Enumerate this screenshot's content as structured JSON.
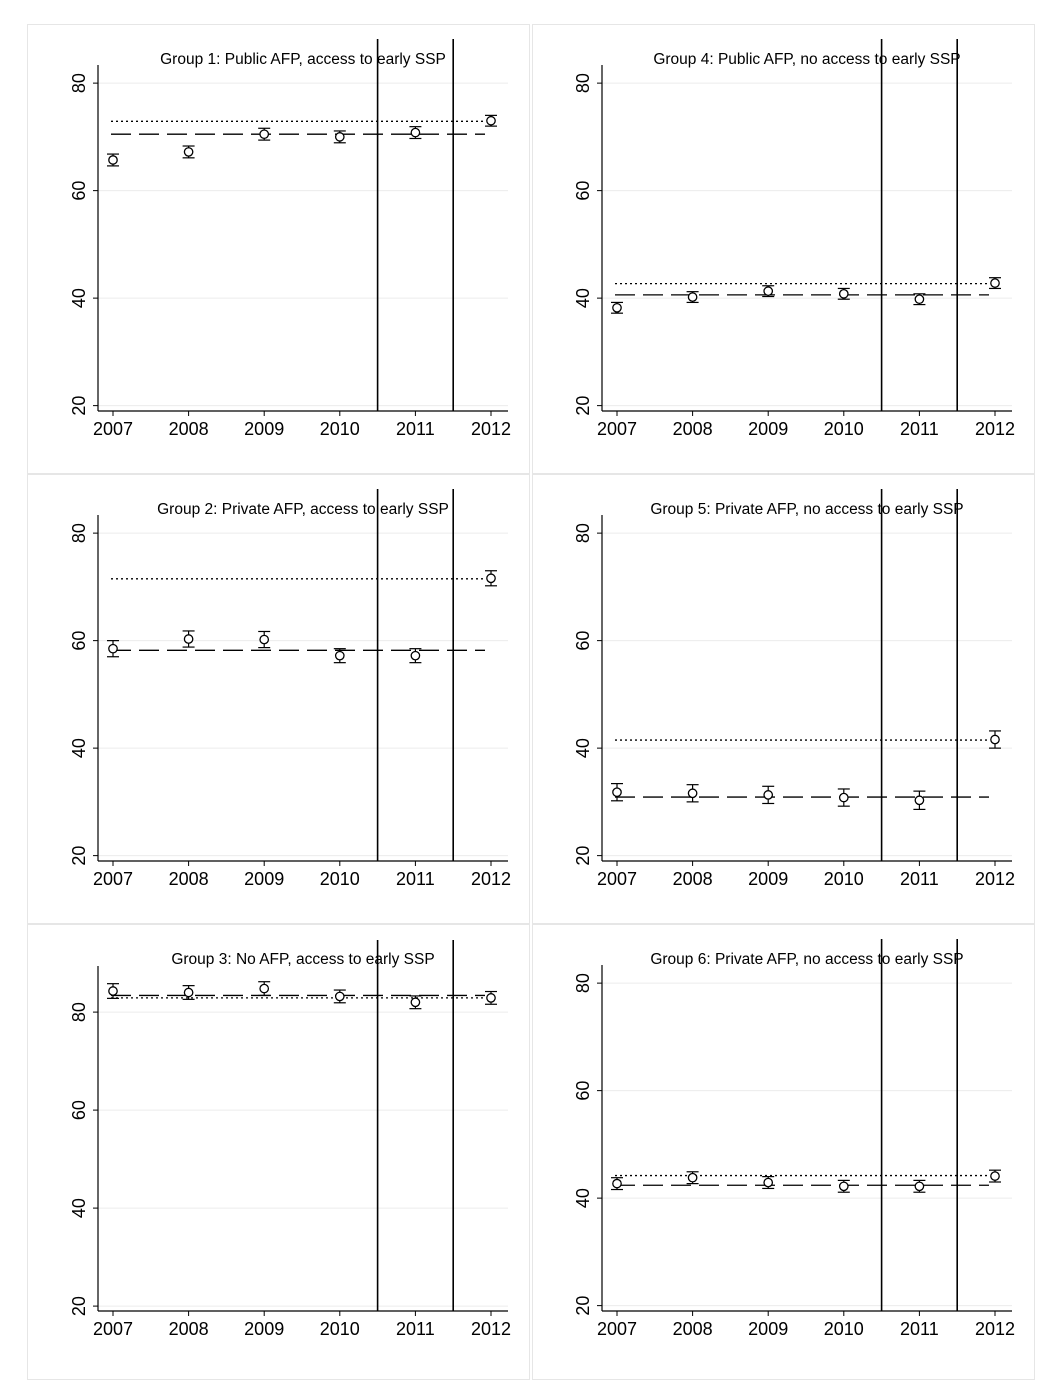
{
  "chart_data": [
    {
      "type": "scatter",
      "title": "Group 1: Public AFP, access to early SSP",
      "x": [
        "2007",
        "2008",
        "2009",
        "2010",
        "2011",
        "2012"
      ],
      "series": [
        {
          "values": [
            65.7,
            67.2,
            70.5,
            70.0,
            70.8,
            73.0
          ],
          "ci_low": [
            64.6,
            66.1,
            69.4,
            68.9,
            69.7,
            72.0
          ],
          "ci_high": [
            66.8,
            68.3,
            71.6,
            71.1,
            71.9,
            74.0
          ]
        }
      ],
      "reference_lines": {
        "dashed": 70.5,
        "dotted": 72.9
      },
      "vertical_lines_after": [
        "2010",
        "2011"
      ],
      "ylim": [
        19,
        83
      ],
      "yticks": [
        "20",
        "40",
        "60",
        "80"
      ],
      "grid": true
    },
    {
      "type": "scatter",
      "title": "Group 4: Public AFP, no access to early SSP",
      "x": [
        "2007",
        "2008",
        "2009",
        "2010",
        "2011",
        "2012"
      ],
      "series": [
        {
          "values": [
            38.2,
            40.2,
            41.3,
            40.8,
            39.8,
            42.8
          ],
          "ci_low": [
            37.2,
            39.2,
            40.3,
            39.8,
            38.8,
            41.8
          ],
          "ci_high": [
            39.2,
            41.2,
            42.3,
            41.8,
            40.8,
            43.8
          ]
        }
      ],
      "reference_lines": {
        "dashed": 40.6,
        "dotted": 42.7
      },
      "vertical_lines_after": [
        "2010",
        "2011"
      ],
      "ylim": [
        19,
        83
      ],
      "yticks": [
        "20",
        "40",
        "60",
        "80"
      ],
      "grid": true
    },
    {
      "type": "scatter",
      "title": "Group 2: Private AFP, access to early SSP",
      "x": [
        "2007",
        "2008",
        "2009",
        "2010",
        "2011",
        "2012"
      ],
      "series": [
        {
          "values": [
            58.5,
            60.3,
            60.2,
            57.2,
            57.2,
            71.6
          ],
          "ci_low": [
            57.0,
            58.8,
            58.7,
            55.9,
            55.9,
            70.2
          ],
          "ci_high": [
            60.0,
            61.8,
            61.7,
            58.5,
            58.5,
            73.0
          ]
        }
      ],
      "reference_lines": {
        "dashed": 58.2,
        "dotted": 71.5
      },
      "vertical_lines_after": [
        "2010",
        "2011"
      ],
      "ylim": [
        19,
        83
      ],
      "yticks": [
        "20",
        "40",
        "60",
        "80"
      ],
      "grid": true
    },
    {
      "type": "scatter",
      "title": "Group 5: Private AFP, no access to early SSP",
      "x": [
        "2007",
        "2008",
        "2009",
        "2010",
        "2011",
        "2012"
      ],
      "series": [
        {
          "values": [
            31.8,
            31.6,
            31.3,
            30.8,
            30.3,
            41.6
          ],
          "ci_low": [
            30.2,
            30.0,
            29.7,
            29.2,
            28.6,
            40.0
          ],
          "ci_high": [
            33.4,
            33.2,
            32.9,
            32.4,
            32.0,
            43.2
          ]
        }
      ],
      "reference_lines": {
        "dashed": 30.9,
        "dotted": 41.5
      },
      "vertical_lines_after": [
        "2010",
        "2011"
      ],
      "ylim": [
        19,
        83
      ],
      "yticks": [
        "20",
        "40",
        "60",
        "80"
      ],
      "grid": true
    },
    {
      "type": "scatter",
      "title": "Group 3: No AFP, access to early SSP",
      "x": [
        "2007",
        "2008",
        "2009",
        "2010",
        "2011",
        "2012"
      ],
      "series": [
        {
          "values": [
            84.3,
            84.0,
            84.8,
            83.2,
            82.0,
            82.9
          ],
          "ci_low": [
            82.8,
            82.6,
            83.4,
            81.9,
            80.7,
            81.6
          ],
          "ci_high": [
            85.8,
            85.4,
            86.2,
            84.5,
            83.3,
            84.2
          ]
        }
      ],
      "reference_lines": {
        "dashed": 83.4,
        "dotted": 82.9
      },
      "vertical_lines_after": [
        "2010",
        "2011"
      ],
      "ylim": [
        19,
        89
      ],
      "yticks": [
        "20",
        "40",
        "60",
        "80"
      ],
      "grid": true
    },
    {
      "type": "scatter",
      "title": "Group 6: Private AFP, no access to early SSP",
      "x": [
        "2007",
        "2008",
        "2009",
        "2010",
        "2011",
        "2012"
      ],
      "series": [
        {
          "values": [
            42.7,
            43.8,
            42.9,
            42.2,
            42.2,
            44.1
          ],
          "ci_low": [
            41.6,
            42.7,
            41.8,
            41.1,
            41.1,
            43.0
          ],
          "ci_high": [
            43.8,
            44.9,
            44.0,
            43.3,
            43.3,
            45.2
          ]
        }
      ],
      "reference_lines": {
        "dashed": 42.4,
        "dotted": 44.2
      },
      "vertical_lines_after": [
        "2010",
        "2011"
      ],
      "ylim": [
        19,
        83
      ],
      "yticks": [
        "20",
        "40",
        "60",
        "80"
      ],
      "grid": true
    }
  ]
}
